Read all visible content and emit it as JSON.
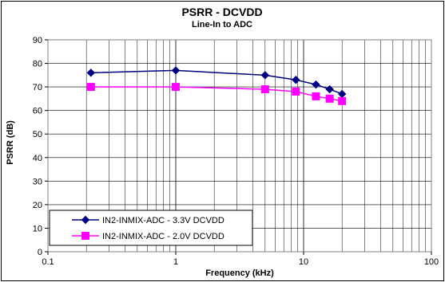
{
  "chart_data": {
    "type": "line",
    "title": "PSRR - DCVDD",
    "subtitle": "Line-In to ADC",
    "xlabel": "Frequency (kHz)",
    "ylabel": "PSRR (dB)",
    "x_scale": "log",
    "xlim": [
      0.1,
      100
    ],
    "ylim": [
      0,
      90
    ],
    "x_ticks": [
      0.1,
      1,
      10,
      100
    ],
    "x_tick_labels": [
      "0.1",
      "1",
      "10",
      "100"
    ],
    "y_ticks": [
      0,
      10,
      20,
      30,
      40,
      50,
      60,
      70,
      80,
      90
    ],
    "y_tick_labels": [
      "0",
      "10",
      "20",
      "30",
      "40",
      "50",
      "60",
      "70",
      "80",
      "90"
    ],
    "grid": true,
    "legend_position": "bottom-left",
    "series": [
      {
        "name": "IN2-INMIX-ADC - 3.3V DCVDD",
        "color": "#000080",
        "marker": "diamond",
        "x": [
          0.217,
          1,
          5,
          8.7,
          12.5,
          16,
          20
        ],
        "y": [
          76,
          77,
          75,
          73,
          71,
          69,
          67
        ]
      },
      {
        "name": "IN2-INMIX-ADC - 2.0V DCVDD",
        "color": "#FF00FF",
        "marker": "square",
        "x": [
          0.217,
          1,
          5,
          8.7,
          12.5,
          16,
          20
        ],
        "y": [
          70,
          70,
          69,
          68,
          66,
          65,
          64
        ]
      }
    ]
  }
}
